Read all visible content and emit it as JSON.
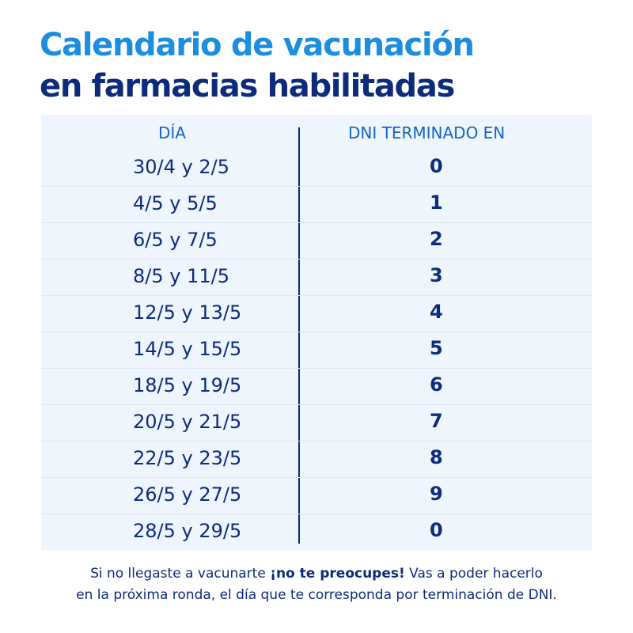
{
  "title": {
    "line1": "Calendario de vacunación",
    "line2": "en farmacias habilitadas"
  },
  "table": {
    "headers": {
      "day": "DÍA",
      "dni": "DNI TERMINADO EN"
    },
    "rows": [
      {
        "day": "30/4 y 2/5",
        "digit": "0"
      },
      {
        "day": "4/5 y 5/5",
        "digit": "1"
      },
      {
        "day": "6/5 y 7/5",
        "digit": "2"
      },
      {
        "day": "8/5 y 11/5",
        "digit": "3"
      },
      {
        "day": "12/5 y 13/5",
        "digit": "4"
      },
      {
        "day": "14/5 y 15/5",
        "digit": "5"
      },
      {
        "day": "18/5 y 19/5",
        "digit": "6"
      },
      {
        "day": "20/5 y 21/5",
        "digit": "7"
      },
      {
        "day": "22/5 y 23/5",
        "digit": "8"
      },
      {
        "day": "26/5 y 27/5",
        "digit": "9"
      },
      {
        "day": "28/5 y 29/5",
        "digit": "0"
      }
    ]
  },
  "footer": {
    "text_before": "Si no llegaste a vacunarte ",
    "emphasis": "¡no te preocupes!",
    "text_after": " Vas a poder hacerlo",
    "line2": "en la próxima ronda, el día que te corresponda por terminación de DNI."
  },
  "colors": {
    "title_light_blue": "#1c8ee0",
    "dark_navy": "#0d2b7a",
    "header_blue": "#1565c0",
    "table_background": "#eef5fc"
  }
}
